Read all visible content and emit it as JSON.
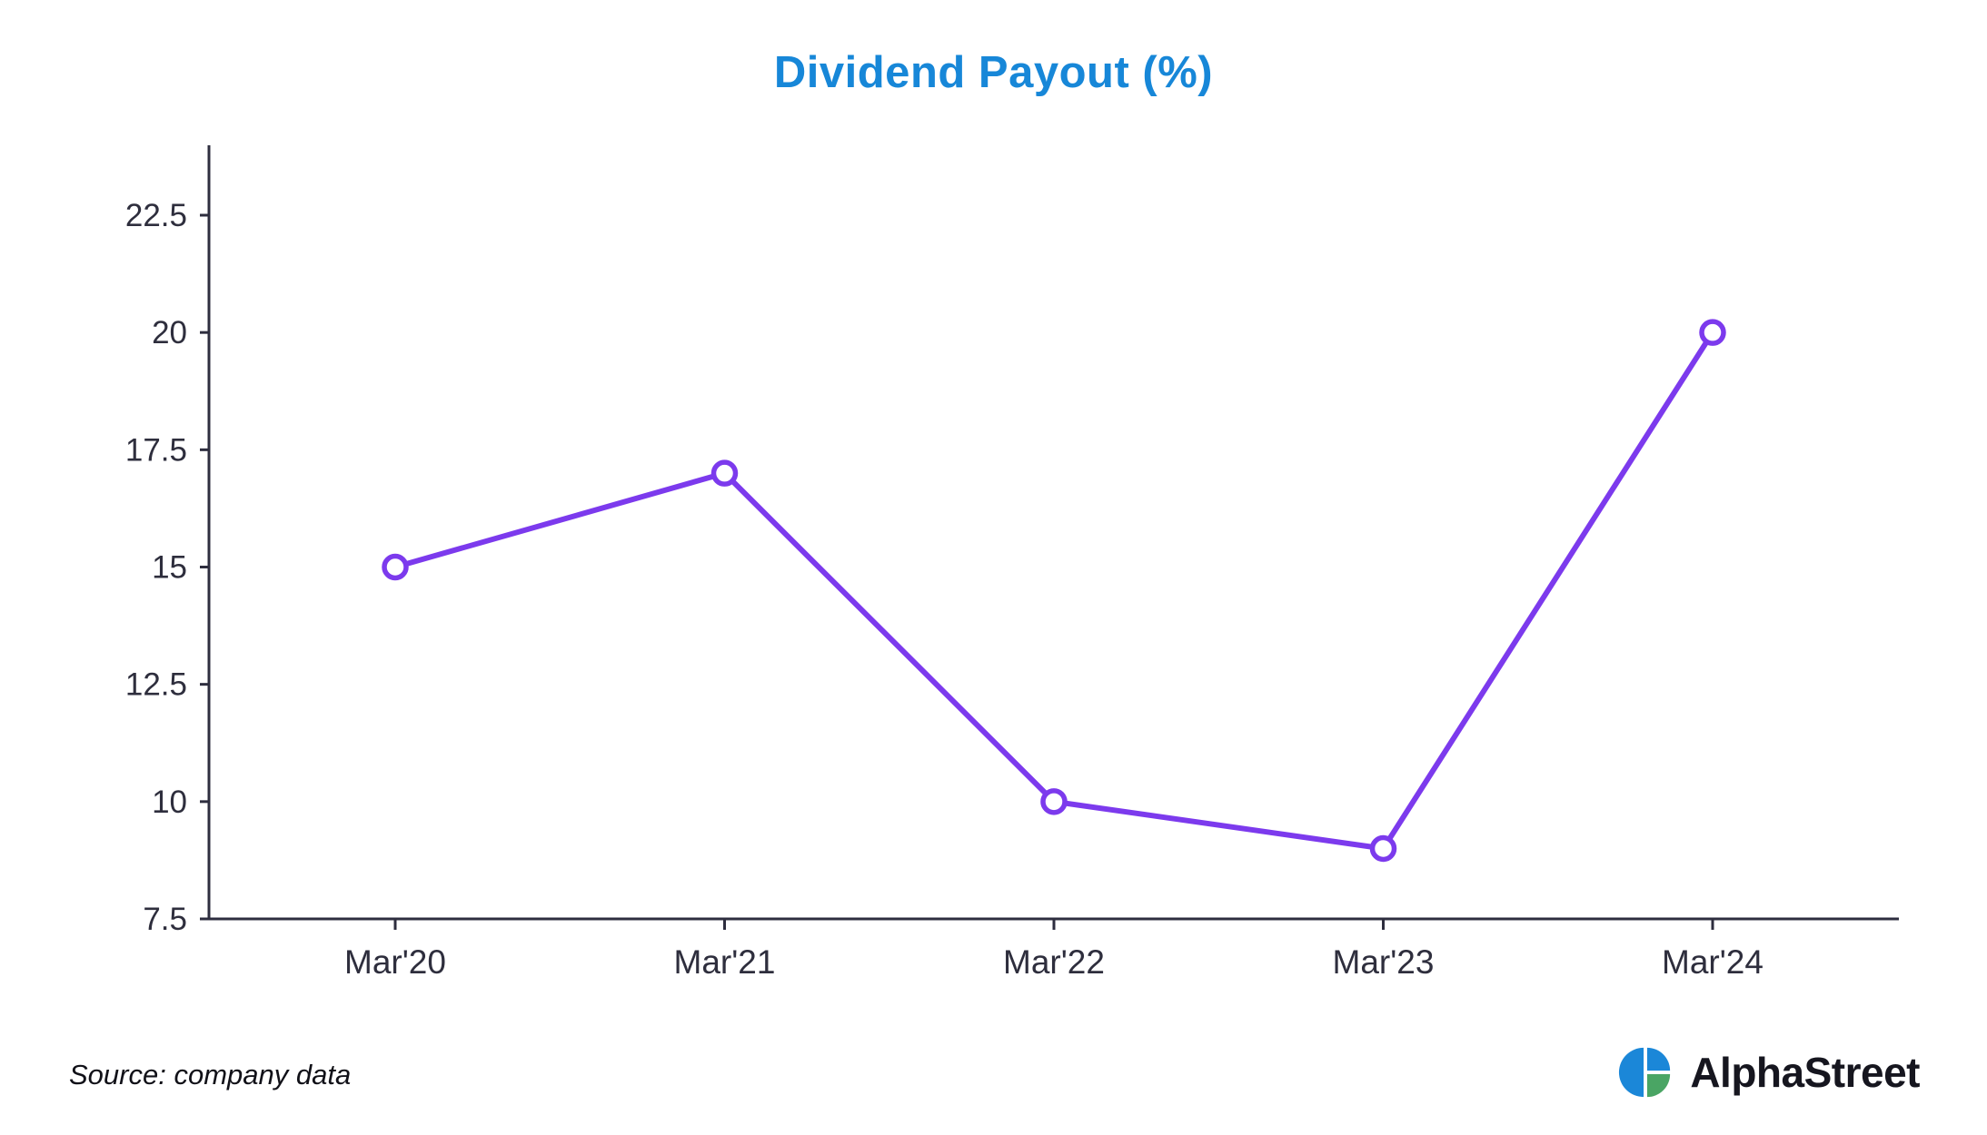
{
  "title": "Dividend Payout (%)",
  "chart_data": {
    "type": "line",
    "title": "Dividend Payout (%)",
    "categories": [
      "Mar'20",
      "Mar'21",
      "Mar'22",
      "Mar'23",
      "Mar'24"
    ],
    "series": [
      {
        "name": "Dividend Payout",
        "values": [
          15,
          17,
          10,
          9,
          20
        ]
      }
    ],
    "xlabel": "",
    "ylabel": "",
    "ylim": [
      7.5,
      22.5
    ],
    "yticks": [
      "7.5",
      "10",
      "12.5",
      "15",
      "17.5",
      "20",
      "22.5"
    ],
    "ytick_values": [
      7.5,
      10,
      12.5,
      15,
      17.5,
      20,
      22.5
    ],
    "grid": false,
    "legend": "none",
    "marker": "open-circle",
    "line_color": "#7C3AED"
  },
  "footer": {
    "source": "Source: company data",
    "brand": "AlphaStreet"
  },
  "colors": {
    "title": "#1787d8",
    "axis": "#2e2e3f",
    "tick_label": "#2e2e3d",
    "line": "#7C3AED",
    "marker_fill": "#ffffff",
    "logo_blue": "#1b87d8",
    "logo_green": "#4aa564",
    "brand_text": "#16161f"
  }
}
